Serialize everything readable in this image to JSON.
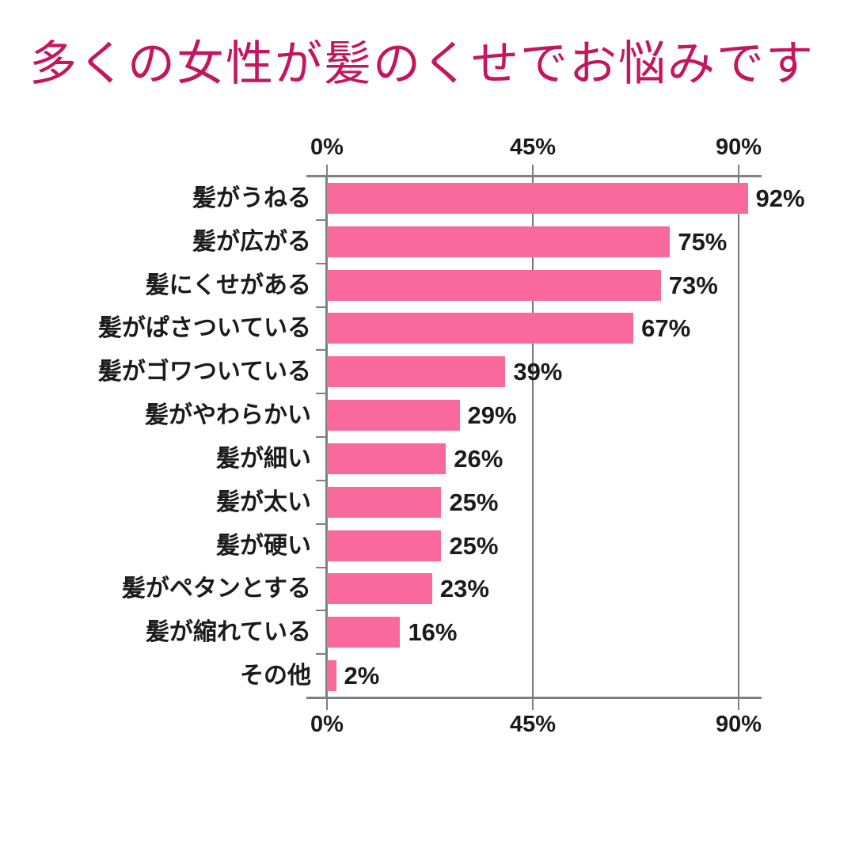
{
  "title": "多くの女性が髪のくせでお悩みです",
  "colors": {
    "title": "#c4165f",
    "bar": "#f9699b",
    "axis": "#808080",
    "grid": "#787878",
    "text": "#1b1b1b",
    "background": "#ffffff"
  },
  "chart_data": {
    "type": "bar",
    "orientation": "horizontal",
    "title": "多くの女性が髪のくせでお悩みです",
    "categories": [
      "髪がうねる",
      "髪が広がる",
      "髪にくせがある",
      "髪がぱさついている",
      "髪がゴワついている",
      "髪がやわらかい",
      "髪が細い",
      "髪が太い",
      "髪が硬い",
      "髪がペタンとする",
      "髪が縮れている",
      "その他"
    ],
    "values": [
      92,
      75,
      73,
      67,
      39,
      29,
      26,
      25,
      25,
      23,
      16,
      2
    ],
    "value_labels": [
      "92%",
      "75%",
      "73%",
      "67%",
      "39%",
      "29%",
      "26%",
      "25%",
      "25%",
      "23%",
      "16%",
      "2%"
    ],
    "x_axis": {
      "tick_values": [
        0,
        45,
        90
      ],
      "tick_labels": [
        "0%",
        "45%",
        "90%"
      ],
      "label_positions": "top and bottom",
      "range": [
        0,
        95
      ]
    },
    "grid": {
      "vertical_lines_at_percent": [
        45,
        90
      ]
    },
    "legend": null,
    "xlabel": "",
    "ylabel": ""
  }
}
